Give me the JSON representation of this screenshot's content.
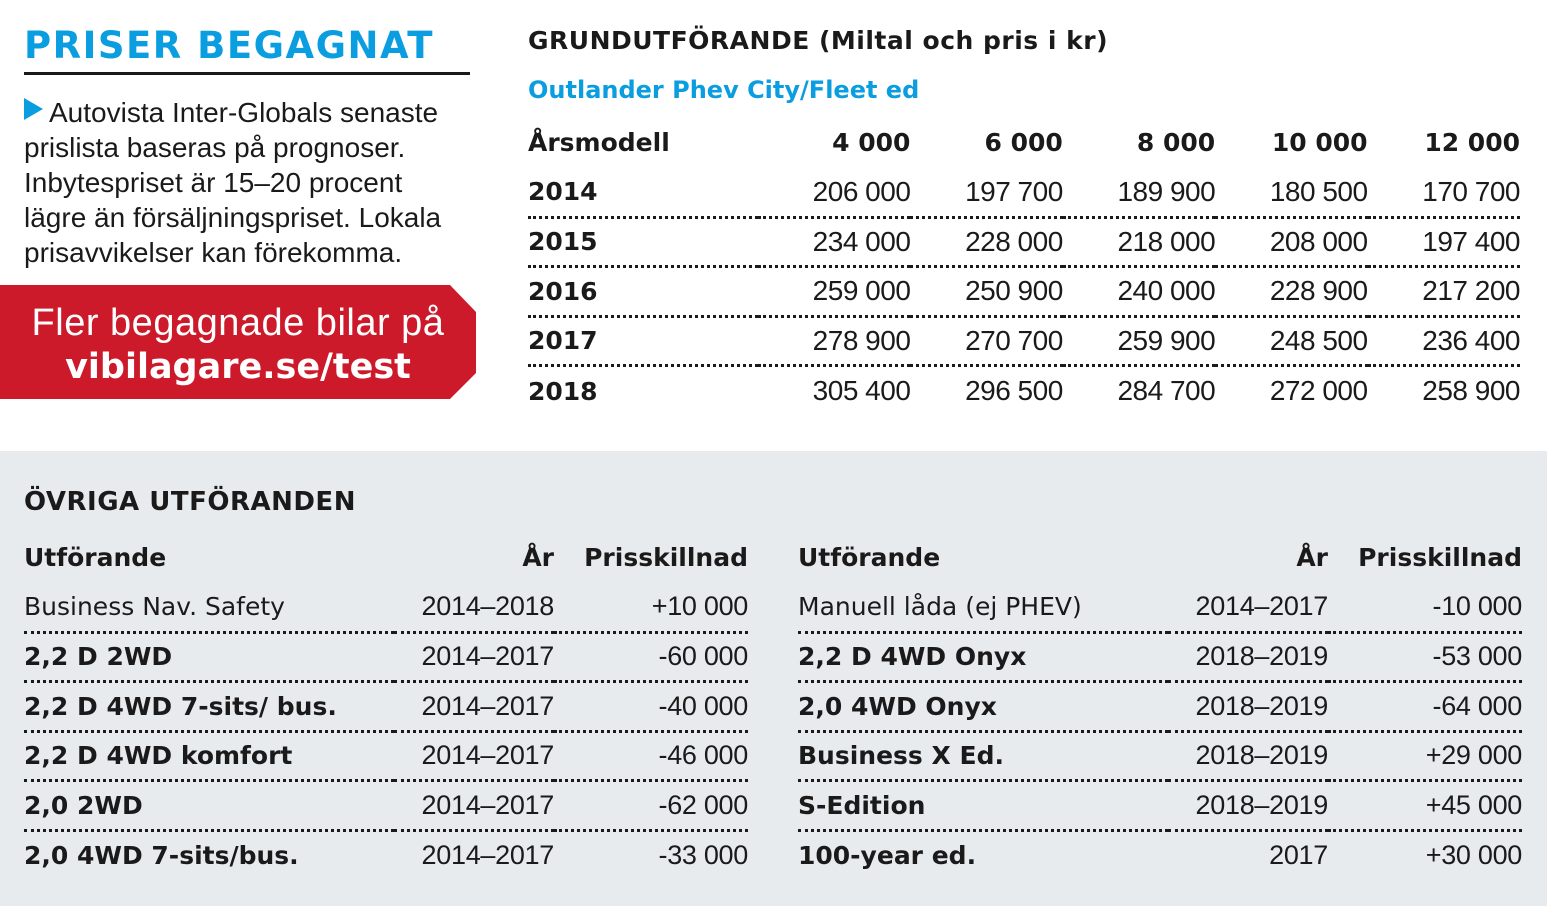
{
  "intro": {
    "title": "PRISER BEGAGNAT",
    "icon": "play-triangle-icon",
    "text": "Autovista Inter-Globals senaste prislista baseras på prognoser. Inbytespriset är 15–20 procent lägre än försäljningspriset. Lokala prisavvikelser kan förekomma."
  },
  "cta": {
    "line1": "Fler begagnade bilar på",
    "line2": "vibilagare.se/test"
  },
  "main": {
    "title": "GRUNDUTFÖRANDE (Miltal och pris i kr)",
    "subtitle": "Outlander Phev City/Fleet ed",
    "headers": [
      "Årsmodell",
      "4 000",
      "6 000",
      "8 000",
      "10 000",
      "12 000"
    ],
    "rows": [
      [
        "2014",
        "206 000",
        "197 700",
        "189 900",
        "180 500",
        "170 700"
      ],
      [
        "2015",
        "234 000",
        "228 000",
        "218 000",
        "208 000",
        "197 400"
      ],
      [
        "2016",
        "259 000",
        "250 900",
        "240 000",
        "228 900",
        "217 200"
      ],
      [
        "2017",
        "278 900",
        "270 700",
        "259 900",
        "248 500",
        "236 400"
      ],
      [
        "2018",
        "305 400",
        "296 500",
        "284 700",
        "272 000",
        "258 900"
      ]
    ]
  },
  "variants": {
    "title": "ÖVRIGA UTFÖRANDEN",
    "headers": [
      "Utförande",
      "År",
      "Prisskillnad"
    ],
    "left": [
      [
        "Business Nav. Safety",
        "2014–2018",
        "+10 000"
      ],
      [
        "2,2 D 2WD",
        "2014–2017",
        "-60 000"
      ],
      [
        "2,2 D 4WD 7-sits/ bus.",
        "2014–2017",
        "-40 000"
      ],
      [
        "2,2 D 4WD komfort",
        "2014–2017",
        "-46 000"
      ],
      [
        "2,0 2WD",
        "2014–2017",
        "-62 000"
      ],
      [
        "2,0 4WD 7-sits/bus.",
        "2014–2017",
        "-33 000"
      ]
    ],
    "right": [
      [
        "Manuell låda (ej PHEV)",
        "2014–2017",
        "-10 000"
      ],
      [
        "2,2 D 4WD Onyx",
        "2018–2019",
        "-53 000"
      ],
      [
        "2,0 4WD Onyx",
        "2018–2019",
        "-64 000"
      ],
      [
        "Business X Ed.",
        "2018–2019",
        "+29 000"
      ],
      [
        "S-Edition",
        "2018–2019",
        "+45 000"
      ],
      [
        "100-year ed.",
        "2017",
        "+30 000"
      ]
    ]
  },
  "colors": {
    "accent_blue": "#0a9ee0",
    "cta_red": "#cc1a2b",
    "panel_grey": "#e8ebee"
  }
}
